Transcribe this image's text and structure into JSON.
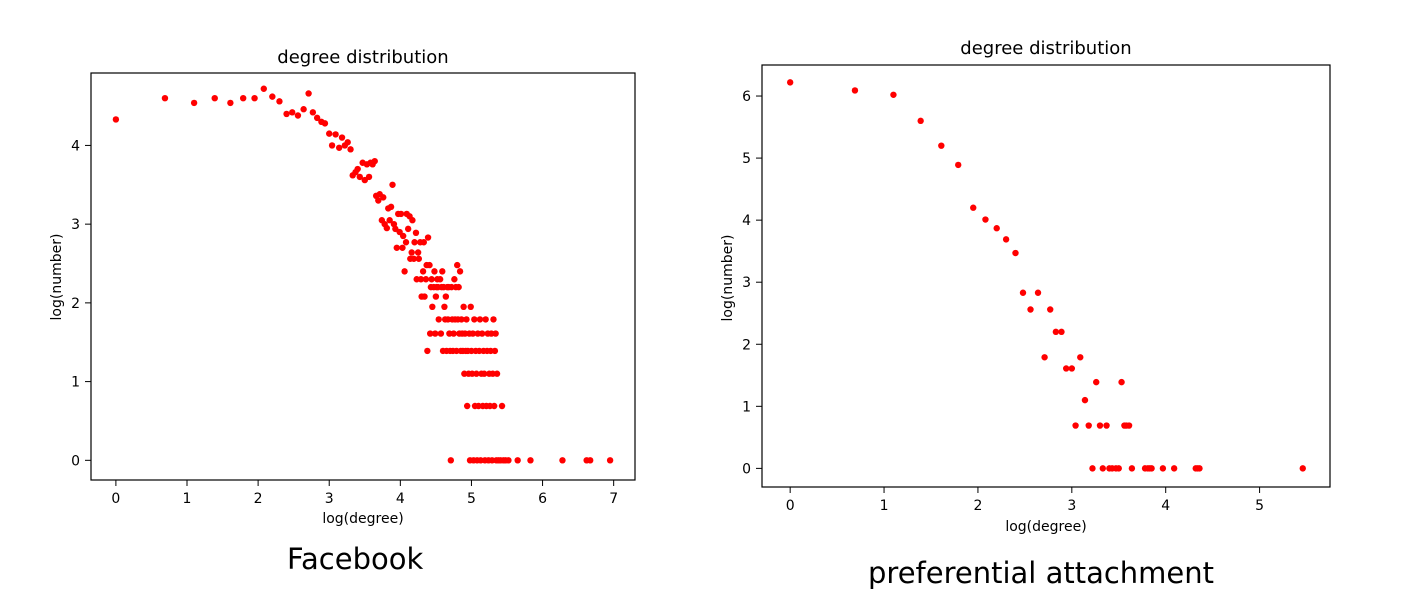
{
  "chart_data": [
    {
      "type": "scatter",
      "title": "degree distribution",
      "xlabel": "log(degree)",
      "ylabel": "log(number)",
      "caption": "Facebook",
      "xlim": [
        -0.35,
        7.3
      ],
      "ylim": [
        -0.25,
        4.92
      ],
      "xticks": [
        0,
        1,
        2,
        3,
        4,
        5,
        6,
        7
      ],
      "yticks": [
        0,
        1,
        2,
        3,
        4
      ],
      "grid": false,
      "marker_color": "#ff0000",
      "points": [
        [
          0.0,
          4.33
        ],
        [
          0.69,
          4.6
        ],
        [
          1.1,
          4.54
        ],
        [
          1.39,
          4.6
        ],
        [
          1.61,
          4.54
        ],
        [
          1.79,
          4.6
        ],
        [
          1.95,
          4.6
        ],
        [
          2.08,
          4.72
        ],
        [
          2.2,
          4.62
        ],
        [
          2.3,
          4.56
        ],
        [
          2.4,
          4.4
        ],
        [
          2.48,
          4.42
        ],
        [
          2.56,
          4.38
        ],
        [
          2.64,
          4.46
        ],
        [
          2.71,
          4.66
        ],
        [
          2.77,
          4.42
        ],
        [
          2.83,
          4.35
        ],
        [
          2.89,
          4.3
        ],
        [
          2.94,
          4.28
        ],
        [
          3.0,
          4.15
        ],
        [
          3.04,
          4.0
        ],
        [
          3.09,
          4.14
        ],
        [
          3.14,
          3.97
        ],
        [
          3.18,
          4.1
        ],
        [
          3.22,
          4.0
        ],
        [
          3.26,
          4.04
        ],
        [
          3.3,
          3.95
        ],
        [
          3.33,
          3.62
        ],
        [
          3.37,
          3.66
        ],
        [
          3.4,
          3.7
        ],
        [
          3.43,
          3.6
        ],
        [
          3.47,
          3.78
        ],
        [
          3.5,
          3.56
        ],
        [
          3.53,
          3.76
        ],
        [
          3.56,
          3.6
        ],
        [
          3.58,
          3.78
        ],
        [
          3.61,
          3.76
        ],
        [
          3.64,
          3.8
        ],
        [
          3.66,
          3.36
        ],
        [
          3.69,
          3.3
        ],
        [
          3.71,
          3.38
        ],
        [
          3.74,
          3.05
        ],
        [
          3.76,
          3.34
        ],
        [
          3.78,
          3.0
        ],
        [
          3.81,
          2.95
        ],
        [
          3.83,
          3.2
        ],
        [
          3.85,
          3.05
        ],
        [
          3.87,
          3.22
        ],
        [
          3.89,
          3.5
        ],
        [
          3.91,
          3.0
        ],
        [
          3.93,
          2.94
        ],
        [
          3.95,
          2.7
        ],
        [
          3.97,
          3.13
        ],
        [
          3.99,
          2.9
        ],
        [
          4.01,
          3.13
        ],
        [
          4.03,
          2.7
        ],
        [
          4.04,
          2.85
        ],
        [
          4.06,
          2.4
        ],
        [
          4.08,
          2.77
        ],
        [
          4.09,
          3.13
        ],
        [
          4.11,
          2.94
        ],
        [
          4.13,
          3.1
        ],
        [
          4.14,
          2.56
        ],
        [
          4.16,
          2.64
        ],
        [
          4.17,
          3.05
        ],
        [
          4.19,
          2.56
        ],
        [
          4.2,
          2.77
        ],
        [
          4.22,
          2.89
        ],
        [
          4.23,
          2.3
        ],
        [
          4.25,
          2.64
        ],
        [
          4.26,
          2.56
        ],
        [
          4.28,
          2.77
        ],
        [
          4.29,
          2.3
        ],
        [
          4.3,
          2.08
        ],
        [
          4.32,
          2.4
        ],
        [
          4.33,
          2.77
        ],
        [
          4.34,
          2.08
        ],
        [
          4.36,
          2.3
        ],
        [
          4.37,
          2.48
        ],
        [
          4.38,
          1.39
        ],
        [
          4.39,
          2.83
        ],
        [
          4.41,
          2.48
        ],
        [
          4.42,
          1.61
        ],
        [
          4.43,
          2.2
        ],
        [
          4.44,
          2.3
        ],
        [
          4.45,
          1.95
        ],
        [
          4.47,
          2.2
        ],
        [
          4.48,
          2.4
        ],
        [
          4.49,
          1.61
        ],
        [
          4.5,
          2.08
        ],
        [
          4.51,
          2.2
        ],
        [
          4.52,
          2.3
        ],
        [
          4.53,
          2.2
        ],
        [
          4.54,
          1.79
        ],
        [
          4.56,
          2.3
        ],
        [
          4.57,
          1.61
        ],
        [
          4.58,
          2.2
        ],
        [
          4.59,
          2.4
        ],
        [
          4.6,
          1.39
        ],
        [
          4.61,
          2.2
        ],
        [
          4.62,
          1.95
        ],
        [
          4.63,
          1.79
        ],
        [
          4.64,
          2.08
        ],
        [
          4.65,
          1.39
        ],
        [
          4.66,
          2.2
        ],
        [
          4.67,
          1.79
        ],
        [
          4.68,
          2.2
        ],
        [
          4.69,
          1.61
        ],
        [
          4.7,
          1.39
        ],
        [
          4.71,
          0.0
        ],
        [
          4.72,
          2.2
        ],
        [
          4.73,
          1.79
        ],
        [
          4.74,
          1.39
        ],
        [
          4.75,
          1.61
        ],
        [
          4.76,
          2.3
        ],
        [
          4.77,
          1.79
        ],
        [
          4.78,
          2.2
        ],
        [
          4.79,
          1.39
        ],
        [
          4.8,
          2.48
        ],
        [
          4.81,
          1.79
        ],
        [
          4.82,
          2.2
        ],
        [
          4.83,
          1.61
        ],
        [
          4.84,
          2.4
        ],
        [
          4.85,
          1.39
        ],
        [
          4.86,
          1.79
        ],
        [
          4.87,
          1.61
        ],
        [
          4.88,
          1.39
        ],
        [
          4.89,
          1.95
        ],
        [
          4.9,
          1.1
        ],
        [
          4.91,
          1.61
        ],
        [
          4.92,
          1.39
        ],
        [
          4.93,
          1.79
        ],
        [
          4.94,
          0.69
        ],
        [
          4.95,
          1.39
        ],
        [
          4.96,
          1.1
        ],
        [
          4.97,
          1.61
        ],
        [
          4.98,
          0.0
        ],
        [
          4.99,
          1.95
        ],
        [
          5.0,
          1.39
        ],
        [
          5.01,
          1.1
        ],
        [
          5.02,
          1.61
        ],
        [
          5.03,
          0.0
        ],
        [
          5.04,
          1.79
        ],
        [
          5.05,
          0.69
        ],
        [
          5.06,
          1.39
        ],
        [
          5.07,
          1.1
        ],
        [
          5.08,
          0.0
        ],
        [
          5.09,
          1.61
        ],
        [
          5.1,
          0.69
        ],
        [
          5.11,
          1.39
        ],
        [
          5.12,
          1.79
        ],
        [
          5.13,
          0.0
        ],
        [
          5.14,
          1.1
        ],
        [
          5.15,
          1.61
        ],
        [
          5.16,
          0.69
        ],
        [
          5.17,
          1.39
        ],
        [
          5.18,
          1.1
        ],
        [
          5.19,
          0.0
        ],
        [
          5.2,
          1.79
        ],
        [
          5.21,
          0.69
        ],
        [
          5.22,
          1.39
        ],
        [
          5.23,
          1.61
        ],
        [
          5.24,
          0.0
        ],
        [
          5.25,
          1.1
        ],
        [
          5.26,
          0.69
        ],
        [
          5.27,
          1.39
        ],
        [
          5.28,
          1.61
        ],
        [
          5.29,
          0.0
        ],
        [
          5.3,
          1.1
        ],
        [
          5.31,
          1.79
        ],
        [
          5.32,
          0.69
        ],
        [
          5.33,
          1.39
        ],
        [
          5.34,
          1.61
        ],
        [
          5.35,
          0.0
        ],
        [
          5.36,
          1.1
        ],
        [
          5.38,
          0.0
        ],
        [
          5.41,
          0.0
        ],
        [
          5.43,
          0.69
        ],
        [
          5.45,
          0.0
        ],
        [
          5.48,
          0.0
        ],
        [
          5.52,
          0.0
        ],
        [
          5.65,
          0.0
        ],
        [
          5.83,
          0.0
        ],
        [
          6.28,
          0.0
        ],
        [
          6.62,
          0.0
        ],
        [
          6.67,
          0.0
        ],
        [
          6.95,
          0.0
        ]
      ]
    },
    {
      "type": "scatter",
      "title": "degree distribution",
      "xlabel": "log(degree)",
      "ylabel": "log(number)",
      "caption": "preferential attachment",
      "xlim": [
        -0.3,
        5.75
      ],
      "ylim": [
        -0.3,
        6.5
      ],
      "xticks": [
        0,
        1,
        2,
        3,
        4,
        5
      ],
      "yticks": [
        0,
        1,
        2,
        3,
        4,
        5,
        6
      ],
      "grid": false,
      "marker_color": "#ff0000",
      "points": [
        [
          0.0,
          6.22
        ],
        [
          0.69,
          6.09
        ],
        [
          1.1,
          6.02
        ],
        [
          1.39,
          5.6
        ],
        [
          1.61,
          5.2
        ],
        [
          1.79,
          4.89
        ],
        [
          1.95,
          4.2
        ],
        [
          2.08,
          4.01
        ],
        [
          2.2,
          3.87
        ],
        [
          2.3,
          3.69
        ],
        [
          2.4,
          3.47
        ],
        [
          2.48,
          2.83
        ],
        [
          2.56,
          2.56
        ],
        [
          2.64,
          2.83
        ],
        [
          2.71,
          1.79
        ],
        [
          2.77,
          2.56
        ],
        [
          2.83,
          2.2
        ],
        [
          2.89,
          2.2
        ],
        [
          2.94,
          1.61
        ],
        [
          3.0,
          1.61
        ],
        [
          3.04,
          0.69
        ],
        [
          3.09,
          1.79
        ],
        [
          3.14,
          1.1
        ],
        [
          3.18,
          0.69
        ],
        [
          3.22,
          0.0
        ],
        [
          3.26,
          1.39
        ],
        [
          3.3,
          0.69
        ],
        [
          3.33,
          0.0
        ],
        [
          3.37,
          0.69
        ],
        [
          3.4,
          0.0
        ],
        [
          3.43,
          0.0
        ],
        [
          3.47,
          0.0
        ],
        [
          3.5,
          0.0
        ],
        [
          3.53,
          1.39
        ],
        [
          3.56,
          0.69
        ],
        [
          3.58,
          0.69
        ],
        [
          3.61,
          0.69
        ],
        [
          3.64,
          0.0
        ],
        [
          3.78,
          0.0
        ],
        [
          3.81,
          0.0
        ],
        [
          3.83,
          0.0
        ],
        [
          3.85,
          0.0
        ],
        [
          3.97,
          0.0
        ],
        [
          4.09,
          0.0
        ],
        [
          4.32,
          0.0
        ],
        [
          4.34,
          0.0
        ],
        [
          4.36,
          0.0
        ],
        [
          5.46,
          0.0
        ]
      ]
    }
  ]
}
